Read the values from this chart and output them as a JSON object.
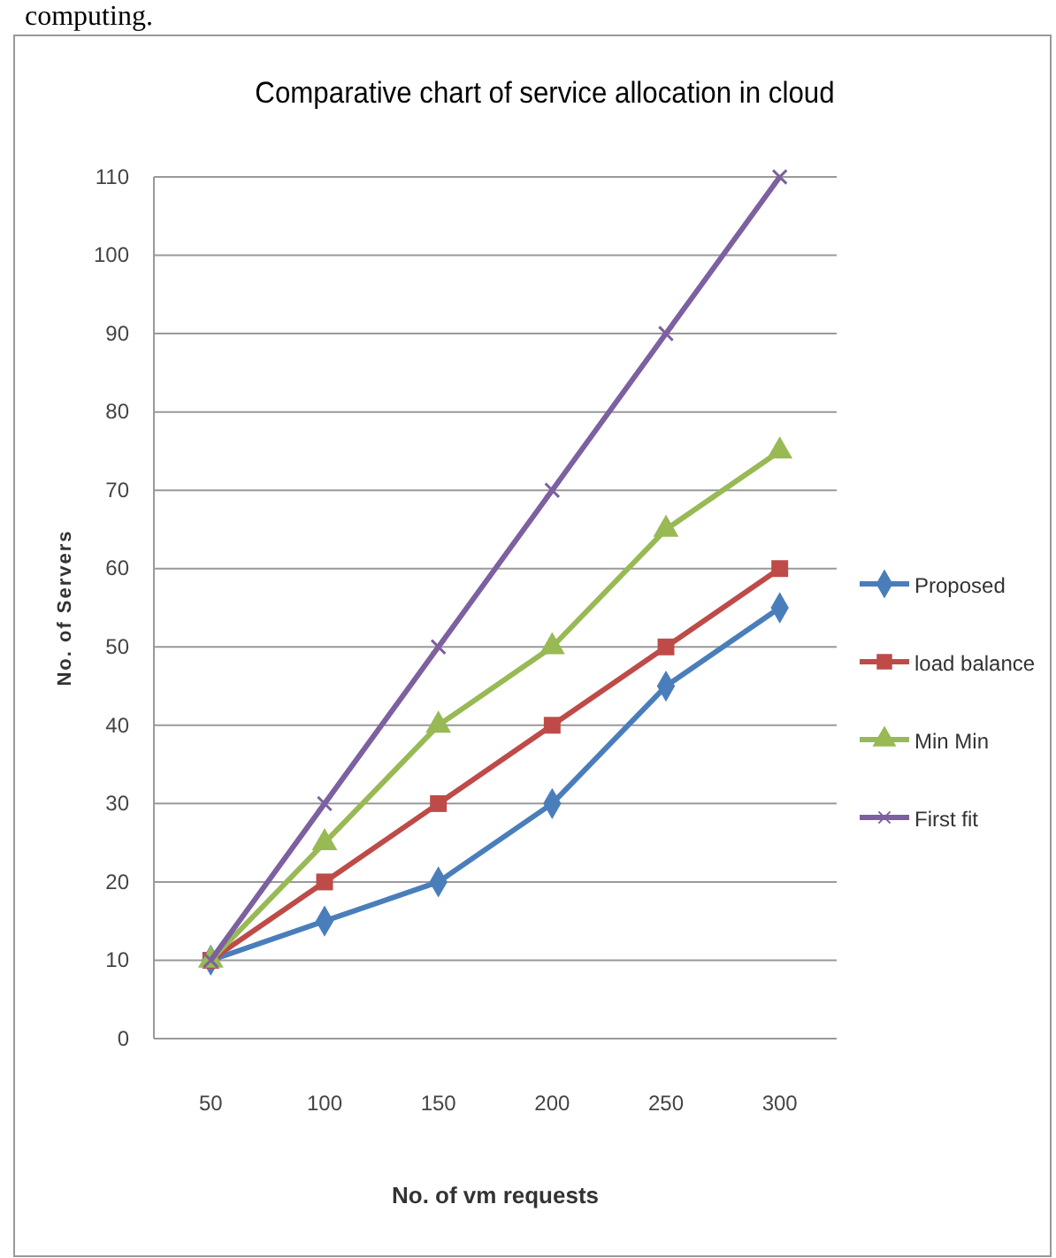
{
  "chart_data": {
    "type": "line",
    "title": "Comparative chart of service allocation in cloud",
    "xlabel": "No. of vm requests",
    "ylabel": "No. of Servers",
    "annotations": [
      "computing."
    ],
    "categories": [
      "50",
      "100",
      "150",
      "200",
      "250",
      "300"
    ],
    "series": [
      {
        "name": "Proposed",
        "color": "#4a7ebb",
        "marker": "diamond",
        "values": [
          10,
          15,
          20,
          30,
          45,
          55
        ]
      },
      {
        "name": "load balance",
        "color": "#be4b48",
        "marker": "square",
        "values": [
          10,
          20,
          30,
          40,
          50,
          60
        ]
      },
      {
        "name": "Min Min",
        "color": "#98b954",
        "marker": "triangle",
        "values": [
          10,
          25,
          40,
          50,
          65,
          75
        ]
      },
      {
        "name": "First fit",
        "color": "#7d60a0",
        "marker": "cross",
        "values": [
          10,
          30,
          50,
          70,
          90,
          110
        ]
      }
    ],
    "ylim": [
      0,
      110
    ],
    "yticks": [
      0,
      10,
      20,
      30,
      40,
      50,
      60,
      70,
      80,
      90,
      100,
      110
    ],
    "grid": "y",
    "legend": "right",
    "line_style": "solid"
  }
}
